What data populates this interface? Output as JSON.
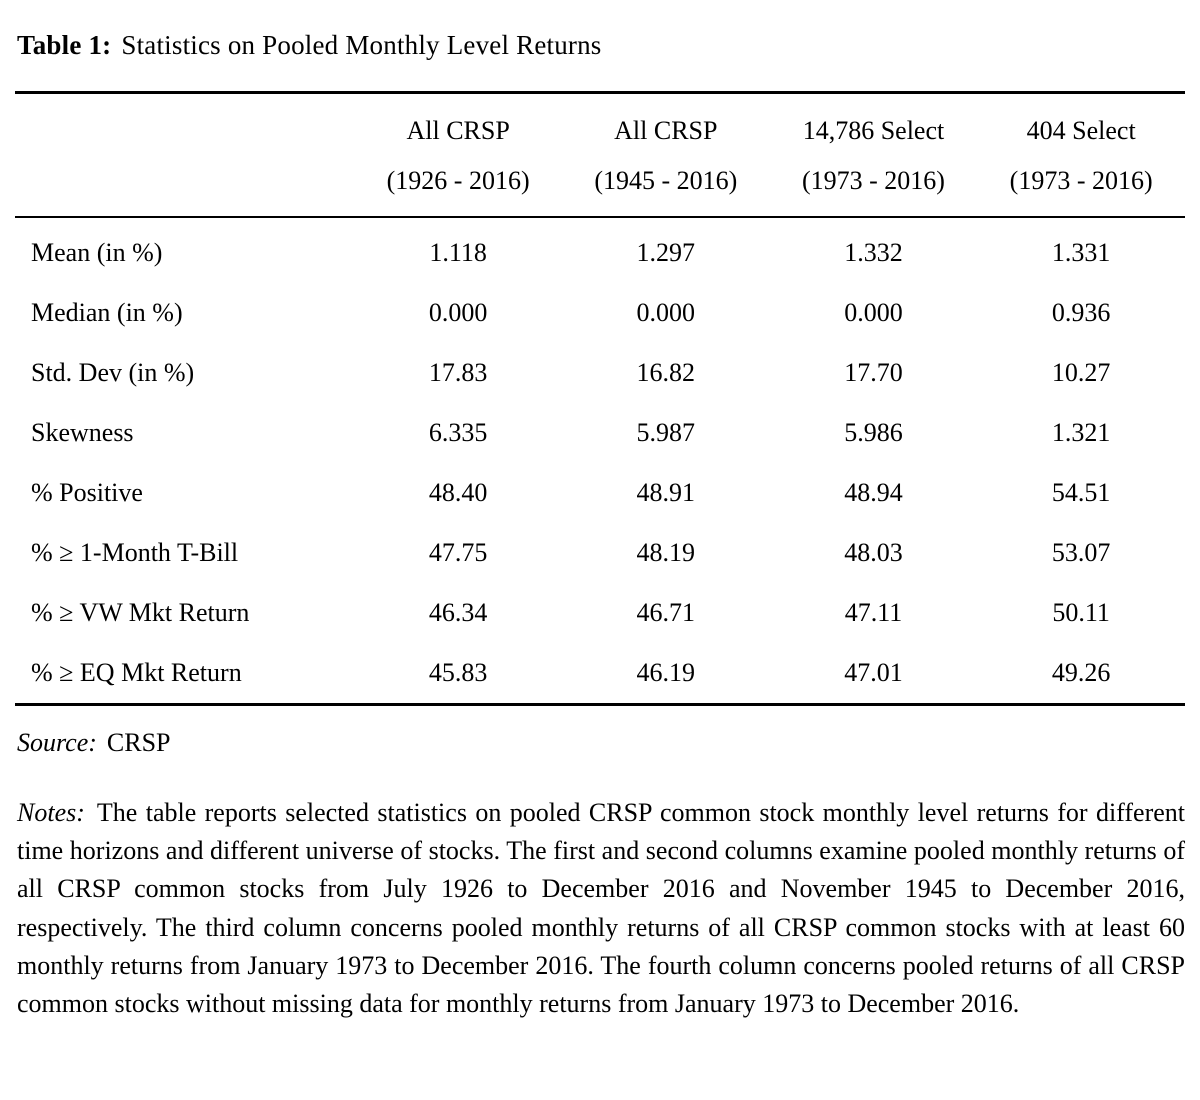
{
  "title": {
    "label": "Table 1:",
    "text": "Statistics on Pooled Monthly Level Returns"
  },
  "table": {
    "columns": [
      {
        "name": "All CRSP",
        "period": "(1926 - 2016)"
      },
      {
        "name": "All CRSP",
        "period": "(1945 - 2016)"
      },
      {
        "name": "14,786 Select",
        "period": "(1973 - 2016)"
      },
      {
        "name": "404 Select",
        "period": "(1973 - 2016)"
      }
    ],
    "rows": [
      {
        "label": "Mean (in %)",
        "values": [
          "1.118",
          "1.297",
          "1.332",
          "1.331"
        ]
      },
      {
        "label": "Median (in %)",
        "values": [
          "0.000",
          "0.000",
          "0.000",
          "0.936"
        ]
      },
      {
        "label": "Std. Dev (in %)",
        "values": [
          "17.83",
          "16.82",
          "17.70",
          "10.27"
        ]
      },
      {
        "label": "Skewness",
        "values": [
          "6.335",
          "5.987",
          "5.986",
          "1.321"
        ]
      },
      {
        "label": "% Positive",
        "values": [
          "48.40",
          "48.91",
          "48.94",
          "54.51"
        ]
      },
      {
        "label": "% ≥ 1-Month T-Bill",
        "values": [
          "47.75",
          "48.19",
          "48.03",
          "53.07"
        ]
      },
      {
        "label": "% ≥ VW Mkt Return",
        "values": [
          "46.34",
          "46.71",
          "47.11",
          "50.11"
        ]
      },
      {
        "label": "% ≥ EQ Mkt Return",
        "values": [
          "45.83",
          "46.19",
          "47.01",
          "49.26"
        ]
      }
    ]
  },
  "source": {
    "label": "Source:",
    "text": "CRSP"
  },
  "notes": {
    "label": "Notes:",
    "text": "The table reports selected statistics on pooled CRSP common stock monthly level returns for different time horizons and different universe of stocks. The first and second columns examine pooled monthly returns of all CRSP common stocks from July 1926 to December 2016 and November 1945 to December 2016, respectively. The third column concerns pooled monthly returns of all CRSP common stocks with at least 60 monthly returns from January 1973 to December 2016. The fourth column concerns pooled returns of all CRSP common stocks without missing data for monthly returns from January 1973 to December 2016."
  }
}
